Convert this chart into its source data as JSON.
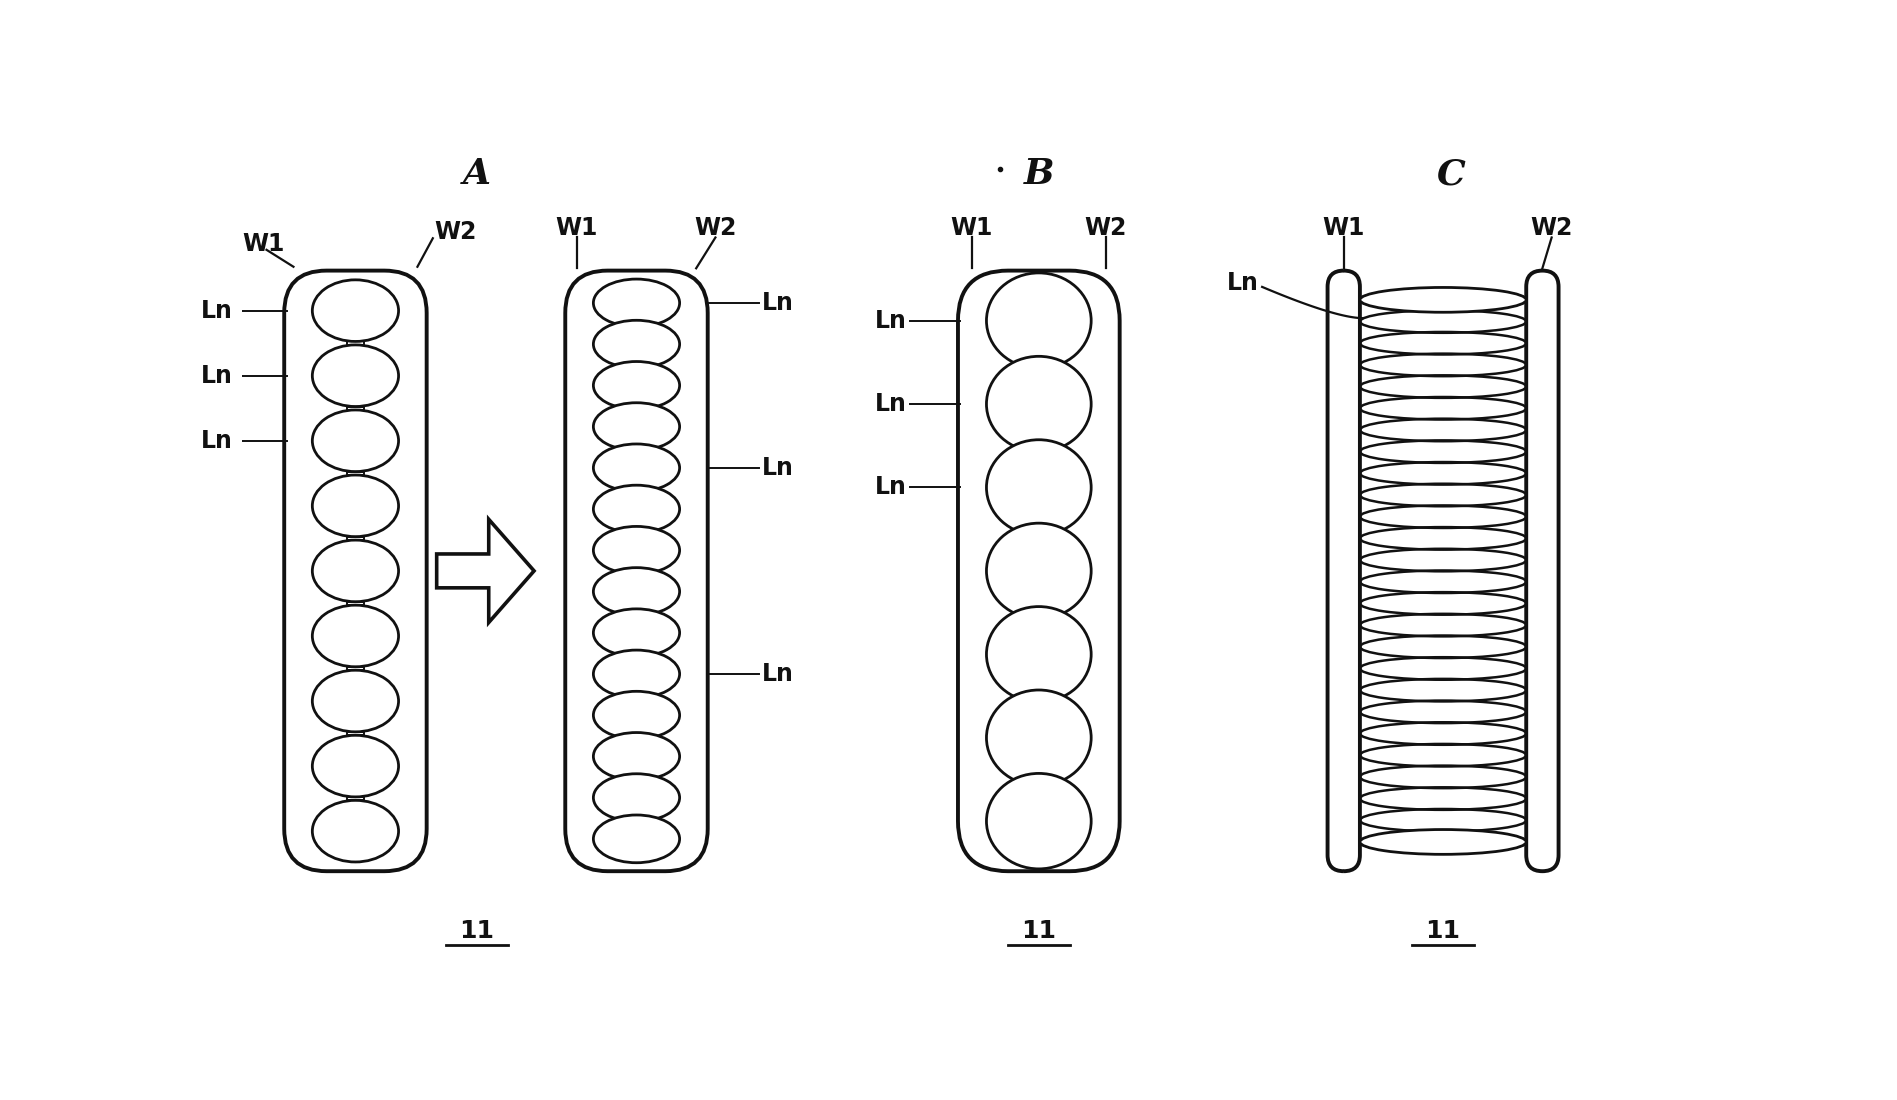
{
  "bg_color": "#ffffff",
  "line_color": "#111111",
  "label_A": "A",
  "label_B": "B",
  "label_C": "C",
  "label_11": "11",
  "label_W1": "W1",
  "label_W2": "W2",
  "label_Ln": "Ln",
  "lw": 2.0,
  "label_fontsize": 17,
  "section_fontsize": 26
}
